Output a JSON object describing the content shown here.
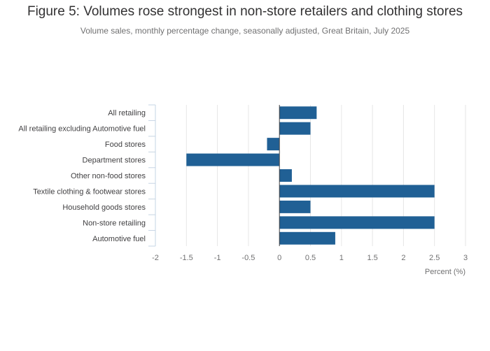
{
  "chart_data": {
    "type": "bar",
    "orientation": "horizontal",
    "title": "Figure 5: Volumes rose strongest in non-store retailers and clothing stores",
    "subtitle": "Volume sales, monthly percentage change, seasonally adjusted, Great Britain, July 2025",
    "xlabel": "Percent (%)",
    "ylabel": "",
    "categories": [
      "All retailing",
      "All retailing excluding Automotive fuel",
      "Food stores",
      "Department stores",
      "Other non-food stores",
      "Textile clothing & footwear stores",
      "Household goods stores",
      "Non-store retailing",
      "Automotive fuel"
    ],
    "values": [
      0.6,
      0.5,
      -0.2,
      -1.5,
      0.2,
      2.5,
      0.5,
      2.5,
      0.9
    ],
    "xlim": [
      -2,
      3
    ],
    "xticks": [
      -2,
      -1.5,
      -1,
      -0.5,
      0,
      0.5,
      1,
      1.5,
      2,
      2.5,
      3
    ],
    "xtick_labels": [
      "-2",
      "-1.5",
      "-1",
      "-0.5",
      "0",
      "0.5",
      "1",
      "1.5",
      "2",
      "2.5",
      "3"
    ],
    "grid": true,
    "colors": {
      "bar": "#206095",
      "grid": "#e6e6e6",
      "axis": "#c6d5e4",
      "zero_line": "#414042"
    }
  }
}
